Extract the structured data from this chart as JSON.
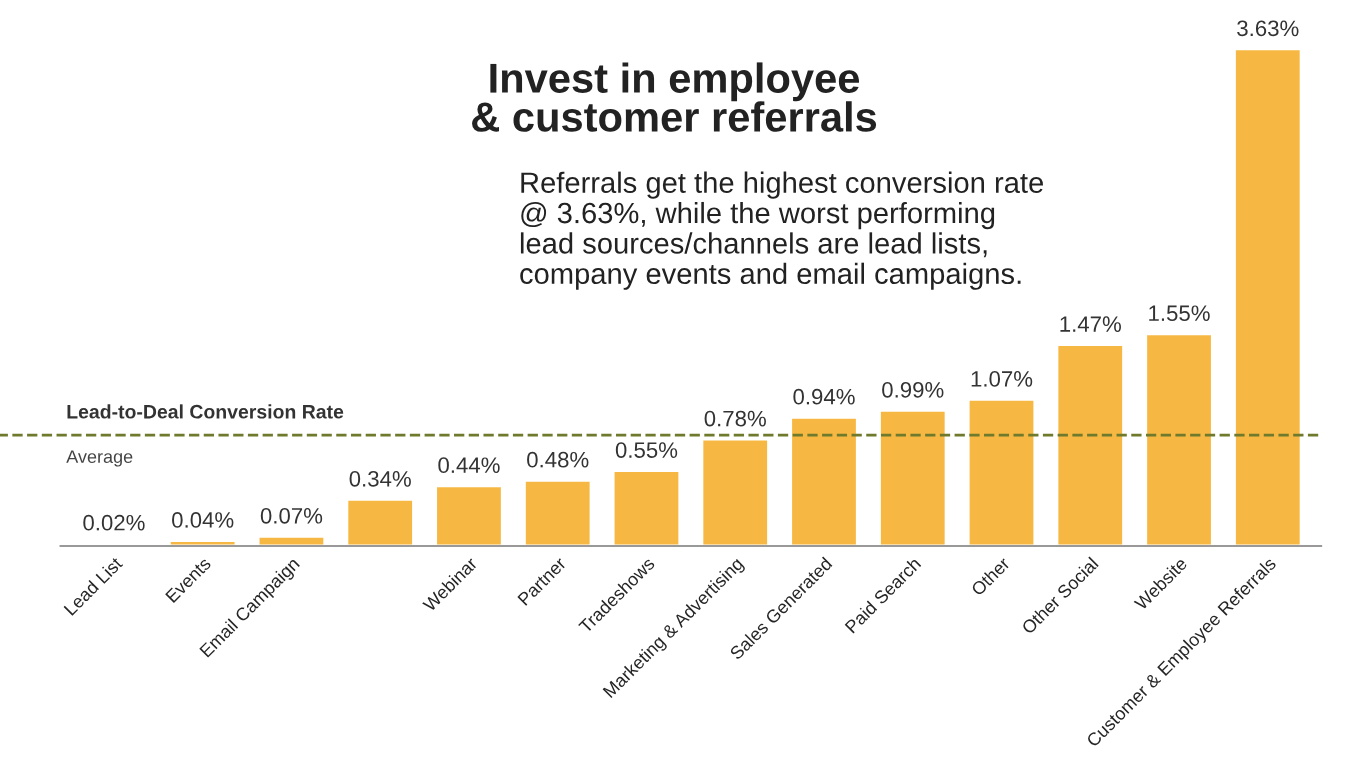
{
  "chart_data": {
    "type": "bar",
    "title": "Invest in employee\n& customer referrals",
    "subtitle": "Referrals get the highest conversion rate\n@ 3.63%, while the worst performing\nlead sources/channels are lead lists,\ncompany events and email campaigns.",
    "categories": [
      "Lead List",
      "Events",
      "Email Campaign",
      null,
      "Webinar",
      "Partner",
      "Tradeshows",
      "Marketing & Advertising",
      "Sales Generated",
      "Paid Search",
      "Other",
      "Other Social",
      "Website",
      "Customer & Employee Referrals"
    ],
    "values": [
      0.02,
      0.04,
      0.07,
      0.34,
      0.44,
      0.48,
      0.55,
      0.78,
      0.94,
      0.99,
      1.07,
      1.47,
      1.55,
      3.63
    ],
    "value_labels": [
      "0.02%",
      "0.04%",
      "0.07%",
      "0.34%",
      "0.44%",
      "0.48%",
      "0.55%",
      "0.78%",
      "0.94%",
      "0.99%",
      "1.07%",
      "1.47%",
      "1.55%",
      "3.63%"
    ],
    "color": "#f6b843",
    "tick_labels": "x",
    "grid": false,
    "legend": false,
    "ref_lines": [
      {
        "axis": "y",
        "value": 0.81,
        "label": "Average",
        "color": "#6f7a2c",
        "line_style": "dashed"
      }
    ],
    "annotations": [
      "Lead-to-Deal Conversion Rate"
    ]
  }
}
